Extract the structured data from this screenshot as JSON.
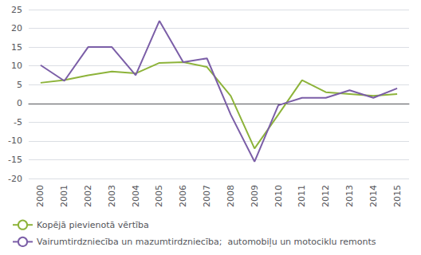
{
  "chart_data": {
    "type": "line",
    "categories": [
      "2000",
      "2001",
      "2002",
      "2003",
      "2004",
      "2005",
      "2006",
      "2007",
      "2008",
      "2009",
      "2010",
      "2011",
      "2012",
      "2013",
      "2014",
      "2015"
    ],
    "series": [
      {
        "name": "Kopējā pievienotā vērtība",
        "color": "#8db33a",
        "values": [
          5.5,
          6.2,
          7.5,
          8.5,
          8.0,
          10.8,
          11.0,
          9.7,
          2.0,
          -12.0,
          -3.0,
          6.2,
          3.0,
          2.5,
          2.0,
          2.5
        ]
      },
      {
        "name": "Vairumtirdzniecība un mazumtirdzniecība;  automobiļu un motociklu remonts",
        "color": "#7b5ea7",
        "values": [
          10.2,
          6.0,
          15.0,
          15.0,
          7.5,
          22.0,
          11.0,
          12.0,
          -3.0,
          -15.5,
          -0.5,
          1.5,
          1.5,
          3.5,
          1.5,
          4.0
        ]
      }
    ],
    "ylim": [
      -20,
      25
    ],
    "yticks": [
      -20,
      -15,
      -10,
      -5,
      0,
      5,
      10,
      15,
      20,
      25
    ],
    "grid": true,
    "legend": "lower left"
  }
}
